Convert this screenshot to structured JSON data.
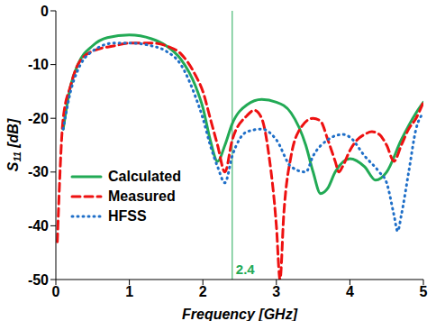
{
  "chart_data": {
    "type": "line",
    "x_label": "Frequency [GHz]",
    "y_label": "S11 [dB]",
    "xlim": [
      0,
      5
    ],
    "xticks": [
      0,
      1,
      2,
      3,
      4,
      5
    ],
    "ylim": [
      -50,
      0
    ],
    "yticks": [
      -50,
      -40,
      -30,
      -20,
      -10,
      0
    ],
    "grid": false,
    "legend": "lower left",
    "annotation": {
      "x": 2.4,
      "label": "2.4",
      "color": "#22aa55"
    },
    "series": [
      {
        "name": "Calculated",
        "color": "#22aa55",
        "line_style": "solid",
        "x": [
          0.1,
          0.2,
          0.3,
          0.5,
          0.7,
          1.0,
          1.3,
          1.5,
          1.7,
          1.9,
          2.0,
          2.1,
          2.2,
          2.3,
          2.4,
          2.6,
          2.8,
          3.0,
          3.2,
          3.4,
          3.5,
          3.6,
          3.7,
          3.8,
          4.0,
          4.2,
          4.35,
          4.5,
          4.7,
          4.9,
          5.0
        ],
        "values": [
          -22,
          -14,
          -10,
          -6.5,
          -5,
          -4.5,
          -5.2,
          -6.5,
          -9,
          -14,
          -18,
          -24,
          -28,
          -25,
          -21,
          -17.5,
          -16.5,
          -17,
          -19,
          -25,
          -30,
          -34,
          -33,
          -30,
          -27.5,
          -29,
          -31.5,
          -30,
          -24,
          -19,
          -17
        ]
      },
      {
        "name": "Measured",
        "color": "#ee1111",
        "line_style": "dashed",
        "x": [
          0.02,
          0.1,
          0.2,
          0.3,
          0.5,
          0.8,
          1.0,
          1.3,
          1.5,
          1.7,
          1.9,
          2.0,
          2.1,
          2.2,
          2.3,
          2.4,
          2.6,
          2.7,
          2.8,
          2.9,
          3.0,
          3.05,
          3.1,
          3.2,
          3.3,
          3.5,
          3.6,
          3.7,
          3.8,
          3.85,
          3.9,
          4.0,
          4.1,
          4.2,
          4.3,
          4.4,
          4.5,
          4.6,
          4.7,
          4.8,
          4.9,
          5.0
        ],
        "values": [
          -43,
          -20,
          -14,
          -10,
          -7.5,
          -6.5,
          -6,
          -6,
          -6.5,
          -8,
          -12,
          -15,
          -20,
          -25,
          -30,
          -24,
          -19.5,
          -18.5,
          -20,
          -27,
          -40,
          -50,
          -38,
          -27,
          -22.5,
          -20,
          -20.5,
          -24,
          -28,
          -30,
          -29,
          -26,
          -24,
          -23,
          -22.5,
          -23,
          -25,
          -28,
          -25,
          -22,
          -20,
          -17
        ]
      },
      {
        "name": "HFSS",
        "color": "#1f6fc8",
        "line_style": "dotted",
        "x": [
          0.1,
          0.2,
          0.3,
          0.5,
          0.8,
          1.0,
          1.3,
          1.5,
          1.7,
          1.9,
          2.0,
          2.1,
          2.2,
          2.3,
          2.4,
          2.6,
          2.8,
          3.0,
          3.2,
          3.4,
          3.5,
          3.7,
          3.9,
          4.0,
          4.2,
          4.4,
          4.5,
          4.6,
          4.65,
          4.7,
          4.8,
          4.9,
          5.0
        ],
        "values": [
          -22,
          -15,
          -11,
          -7.5,
          -6,
          -6,
          -6.5,
          -7.5,
          -10,
          -16,
          -20,
          -25,
          -29,
          -32,
          -27,
          -22.5,
          -22,
          -24,
          -29,
          -30,
          -27,
          -24,
          -23,
          -23.5,
          -27,
          -30,
          -32,
          -38,
          -41,
          -38,
          -30,
          -22,
          -19
        ]
      }
    ]
  }
}
